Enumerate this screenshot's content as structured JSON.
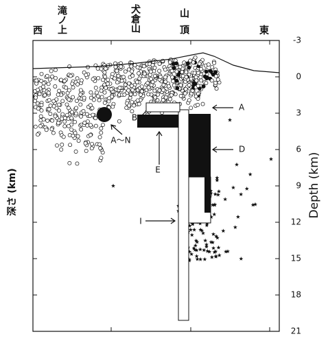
{
  "chart_data": {
    "type": "cross-section",
    "top_labels": [
      "西",
      "滝ノ上",
      "犬倉山",
      "山頂",
      "東"
    ],
    "y_label_left": "深さ (km)",
    "y_label_right": "Depth (km)",
    "ylim": [
      -3,
      21
    ],
    "yticks": [
      -3,
      0,
      3,
      6,
      9,
      12,
      15,
      18,
      21
    ],
    "annotations": [
      "A",
      "B",
      "A〜N",
      "E",
      "D",
      "I"
    ]
  }
}
